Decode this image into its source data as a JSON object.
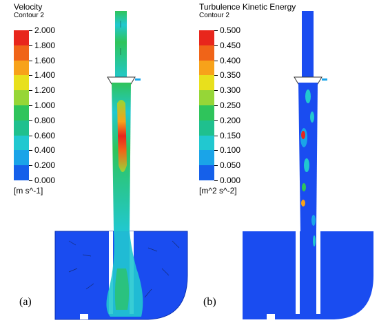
{
  "panels": [
    {
      "label": "(a)",
      "title": "Velocity",
      "subtitle": "Contour 2",
      "units": "[m s^-1]",
      "ticks": [
        "2.000",
        "1.800",
        "1.600",
        "1.400",
        "1.200",
        "1.000",
        "0.800",
        "0.600",
        "0.400",
        "0.200",
        "0.000"
      ]
    },
    {
      "label": "(b)",
      "title": "Turbulence Kinetic Energy",
      "subtitle": "Contour 2",
      "units": "[m^2 s^-2]",
      "ticks": [
        "0.500",
        "0.450",
        "0.400",
        "0.350",
        "0.300",
        "0.250",
        "0.200",
        "0.150",
        "0.100",
        "0.050",
        "0.000"
      ]
    }
  ],
  "colormap": [
    "#e8261c",
    "#f06418",
    "#f7a21a",
    "#e8e01c",
    "#96d637",
    "#2fc45b",
    "#1fc08e",
    "#21c8d0",
    "#1aa4e8",
    "#1560ea"
  ],
  "colors": {
    "field_background": "#1a4cf0",
    "high_velocity": "#e8261c",
    "mid_velocity": "#2fc45b",
    "low_velocity": "#21c8d0"
  }
}
